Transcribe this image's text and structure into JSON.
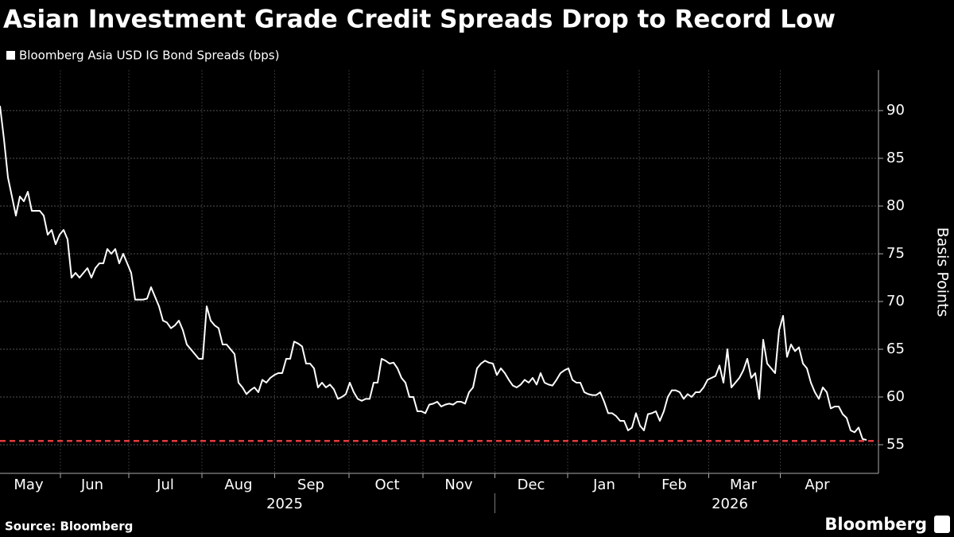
{
  "chart_data": {
    "type": "line",
    "title": "Asian Investment Grade Credit Spreads Drop to Record Low",
    "y_label": "Basis Points",
    "source": "Source: Bloomberg",
    "logo": "Bloomberg",
    "grid": true,
    "series": [
      {
        "name": "Bloomberg Asia USD IG Bond Spreads (bps)",
        "color": "#ffffff",
        "values": [
          90.5,
          87,
          83,
          81,
          79,
          81,
          80.5,
          81.5,
          79.5,
          79.5,
          79.5,
          79,
          77,
          77.5,
          76,
          77,
          77.5,
          76.5,
          72.5,
          73,
          72.5,
          73,
          73.5,
          72.5,
          73.5,
          74,
          74,
          75.5,
          75,
          75.5,
          74,
          75,
          74,
          73,
          70.2,
          70.2,
          70.2,
          70.3,
          71.5,
          70.5,
          69.5,
          68,
          67.8,
          67.2,
          67.5,
          68,
          67,
          65.5,
          65,
          64.5,
          64,
          64,
          69.5,
          68,
          67.5,
          67.2,
          65.5,
          65.5,
          65,
          64.5,
          61.5,
          61,
          60.3,
          60.7,
          61,
          60.5,
          61.8,
          61.5,
          62,
          62.3,
          62.5,
          62.5,
          64,
          64,
          65.8,
          65.6,
          65.3,
          63.5,
          63.5,
          63,
          61,
          61.5,
          61,
          61.3,
          60.8,
          59.8,
          60,
          60.3,
          61.5,
          60.5,
          59.8,
          59.6,
          59.8,
          59.8,
          61.5,
          61.5,
          64,
          63.8,
          63.5,
          63.6,
          63,
          62,
          61.5,
          60,
          60,
          58.5,
          58.5,
          58.3,
          59.2,
          59.3,
          59.5,
          59,
          59.2,
          59.3,
          59.2,
          59.5,
          59.5,
          59.3,
          60.5,
          61,
          63,
          63.5,
          63.8,
          63.6,
          63.5,
          62.3,
          63,
          62.5,
          61.8,
          61.2,
          61,
          61.3,
          61.8,
          61.5,
          62,
          61.3,
          62.5,
          61.5,
          61.3,
          61.2,
          61.8,
          62.5,
          62.8,
          63,
          61.8,
          61.5,
          61.5,
          60.5,
          60.3,
          60.2,
          60.2,
          60.5,
          59.5,
          58.3,
          58.3,
          58,
          57.5,
          57.5,
          56.5,
          56.8,
          58.3,
          57,
          56.5,
          58.2,
          58.3,
          58.5,
          57.5,
          58.5,
          60,
          60.7,
          60.7,
          60.5,
          59.8,
          60.3,
          60,
          60.5,
          60.5,
          61,
          61.8,
          62,
          62.2,
          63.3,
          61.5,
          65,
          61,
          61.5,
          62,
          62.8,
          64,
          62,
          62.5,
          59.8,
          66,
          63.5,
          63,
          62.5,
          67,
          68.5,
          64.2,
          65.5,
          64.8,
          65.2,
          63.5,
          63,
          61.5,
          60.5,
          59.8,
          61,
          60.5,
          58.8,
          59,
          59,
          58.2,
          57.8,
          56.5,
          56.3,
          56.8,
          55.6,
          55.5
        ]
      }
    ],
    "xlim": [
      0,
      218
    ],
    "xticks": [
      {
        "value": 7.2,
        "label": "May"
      },
      {
        "value": 23.2,
        "label": "Jun"
      },
      {
        "value": 41.6,
        "label": "Jul"
      },
      {
        "value": 60,
        "label": "Aug"
      },
      {
        "value": 78.2,
        "label": "Sep"
      },
      {
        "value": 97.4,
        "label": "Oct"
      },
      {
        "value": 115.4,
        "label": "Nov"
      },
      {
        "value": 133.6,
        "label": "Dec"
      },
      {
        "value": 152,
        "label": "Jan"
      },
      {
        "value": 169.6,
        "label": "Feb"
      },
      {
        "value": 187,
        "label": "Mar"
      },
      {
        "value": 205.6,
        "label": "Apr"
      }
    ],
    "year_labels": [
      {
        "value": 71.6,
        "label": "2025"
      },
      {
        "value": 183.6,
        "label": "2026"
      }
    ],
    "ylim": [
      52,
      94.25
    ],
    "yticks": [
      55,
      60,
      65,
      70,
      75,
      80,
      85,
      90
    ],
    "reference_line": {
      "value": 55.4,
      "color": "#e03a3e",
      "dashed": true
    }
  }
}
